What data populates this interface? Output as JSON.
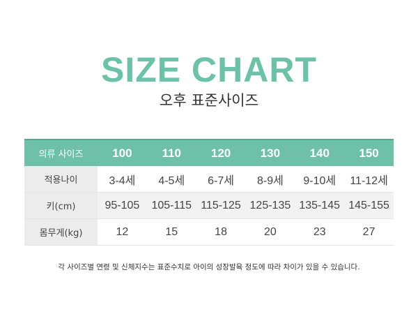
{
  "title": "SIZE CHART",
  "subtitle": "오후 표준사이즈",
  "table": {
    "header_label": "의류 사이즈",
    "sizes": [
      "100",
      "110",
      "120",
      "130",
      "140",
      "150"
    ],
    "rows": [
      {
        "label": "적용나이",
        "values": [
          "3-4세",
          "4-5세",
          "6-7세",
          "8-9세",
          "9-10세",
          "11-12세"
        ]
      },
      {
        "label": "키(cm)",
        "values": [
          "95-105",
          "105-115",
          "115-125",
          "125-135",
          "135-145",
          "145-155"
        ]
      },
      {
        "label": "몸무게(kg)",
        "values": [
          "12",
          "15",
          "18",
          "20",
          "23",
          "27"
        ]
      }
    ]
  },
  "note": "각 사이즈별 연령 및 신체지수는 표준수치로 아이의 성장발육 정도에 따라 차이가 있을 수 있습니다.",
  "colors": {
    "accent": "#6ec0a9",
    "label_bg": "#ececec"
  }
}
